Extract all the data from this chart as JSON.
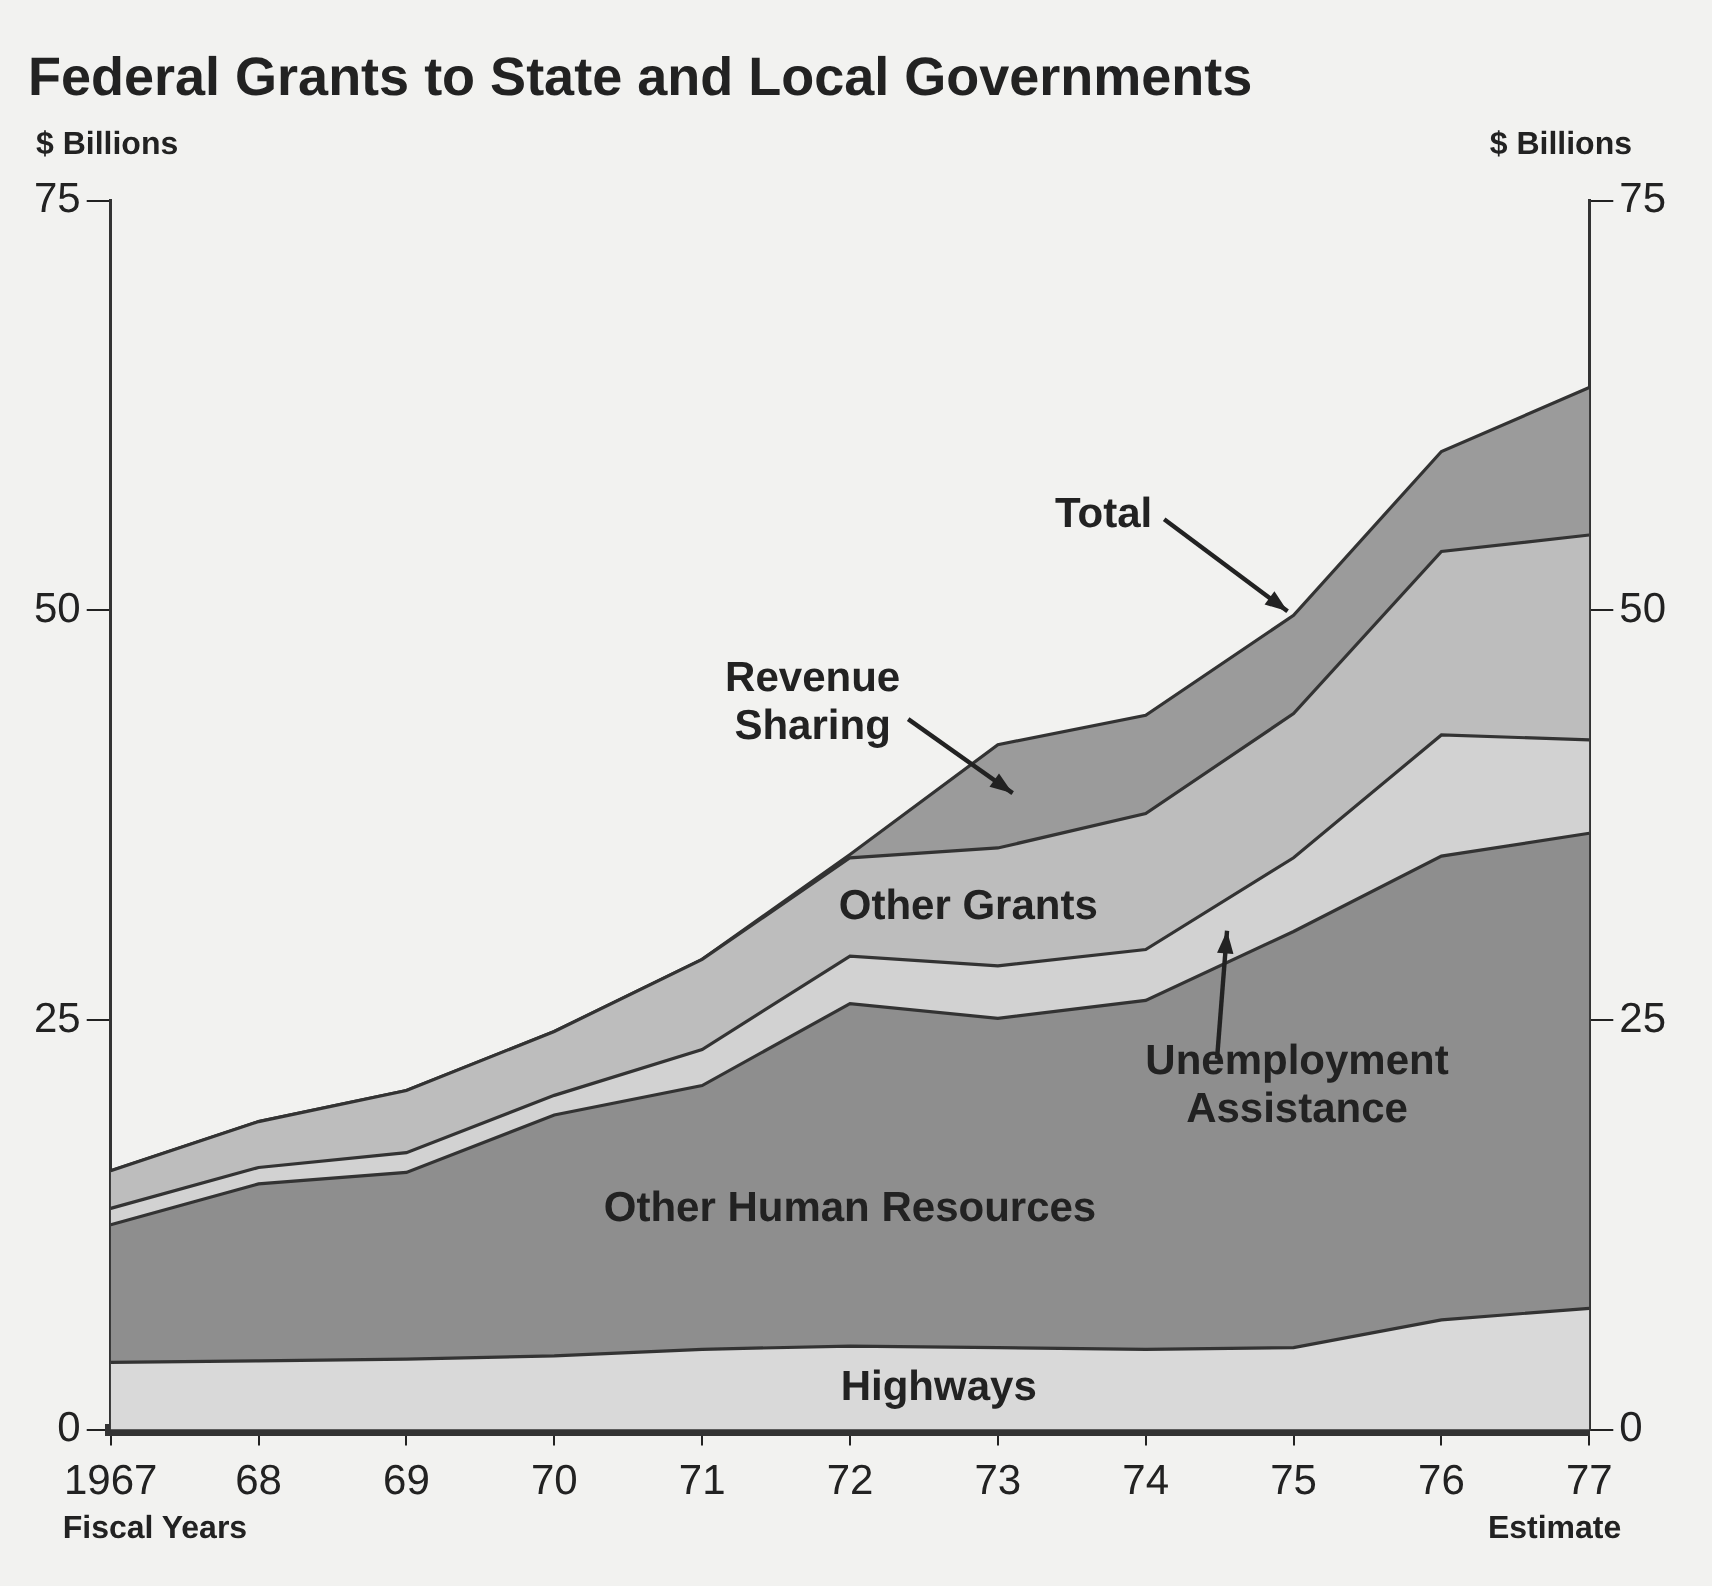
{
  "chart_data": {
    "type": "area",
    "title": "Federal Grants to State and Local Governments",
    "ylabel": "$ Billions",
    "y2label": "$ Billions",
    "categories": [
      "1967",
      "68",
      "69",
      "70",
      "71",
      "72",
      "73",
      "74",
      "75",
      "76",
      "77"
    ],
    "stacked": true,
    "ylim": [
      0,
      75
    ],
    "yticks": [
      0,
      25,
      50,
      75
    ],
    "y2lim": [
      0,
      75
    ],
    "y2ticks": [
      0,
      25,
      50,
      75
    ],
    "legend": false,
    "grid": false,
    "annotations": [
      "Fiscal Years",
      "Estimate",
      {
        "text": "Total",
        "x": "75",
        "y": 49.7
      }
    ],
    "series": [
      {
        "name": "Highways",
        "color": "#d9d9d9",
        "values": [
          4.1,
          4.2,
          4.3,
          4.5,
          4.9,
          5.1,
          5.0,
          4.9,
          5.0,
          6.7,
          7.4
        ]
      },
      {
        "name": "Other Human Resources",
        "color": "#8e8e8e",
        "values": [
          8.4,
          10.8,
          11.4,
          14.7,
          16.1,
          20.9,
          20.1,
          21.3,
          25.4,
          28.3,
          29.0
        ]
      },
      {
        "name": "Unemployment Assistance",
        "color": "#d2d2d2",
        "values": [
          1.0,
          1.0,
          1.2,
          1.2,
          2.2,
          2.9,
          3.2,
          3.1,
          4.5,
          7.4,
          5.7
        ]
      },
      {
        "name": "Other Grants",
        "color": "#bdbdbd",
        "values": [
          2.3,
          2.8,
          3.8,
          3.9,
          5.5,
          6.0,
          7.2,
          8.3,
          8.8,
          11.2,
          12.5
        ]
      },
      {
        "name": "Revenue Sharing",
        "color": "#9b9b9b",
        "values": [
          0,
          0,
          0,
          0,
          0,
          0.2,
          6.3,
          6.0,
          6.0,
          6.1,
          9.0
        ]
      }
    ]
  }
}
